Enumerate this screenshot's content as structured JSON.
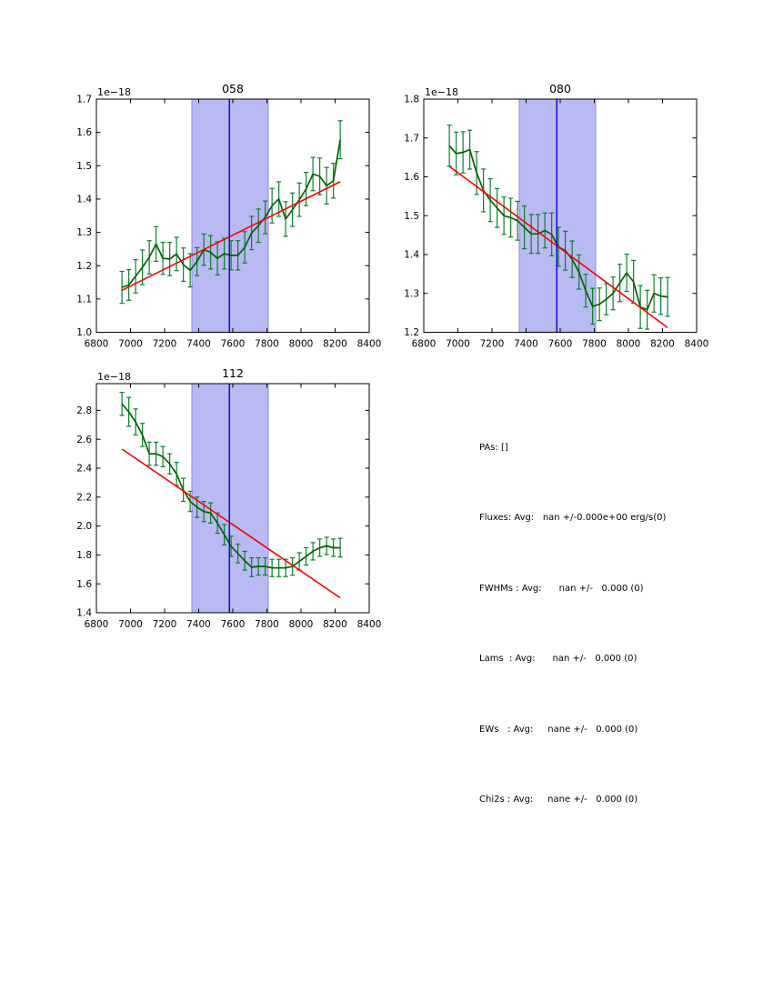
{
  "colors": {
    "background": "#ffffff",
    "axis": "#000000",
    "data_line": "#006400",
    "error_bar": "#0e7d33",
    "fit_line": "#ff0000",
    "vline": "#0000cc",
    "band_fill": "#b9b9f3",
    "band_edge": "#8a8ae6"
  },
  "stats": {
    "lines": [
      "PAs: []",
      "Fluxes: Avg:   nan +/-0.000e+00 erg/s(0)",
      "FWHMs : Avg:      nan +/-   0.000 (0)",
      "Lams  : Avg:      nan +/-   0.000 (0)",
      "EWs   : Avg:     nane +/-   0.000 (0)",
      "Chi2s : Avg:     nane +/-   0.000 (0)"
    ]
  },
  "chart_data": [
    {
      "type": "line",
      "title": "058",
      "offset_text": "1e−18",
      "xlim": [
        6800,
        8400
      ],
      "ylim": [
        1.0,
        1.7
      ],
      "xtick_values": [
        6800,
        7000,
        7200,
        7400,
        7600,
        7800,
        8000,
        8200,
        8400
      ],
      "xtick_labels": [
        "6800",
        "7000",
        "7200",
        "7400",
        "7600",
        "7800",
        "8000",
        "8200",
        "8400"
      ],
      "ytick_values": [
        1.0,
        1.1,
        1.2,
        1.3,
        1.4,
        1.5,
        1.6,
        1.7
      ],
      "ytick_labels": [
        "1.0",
        "1.1",
        "1.2",
        "1.3",
        "1.4",
        "1.5",
        "1.6",
        "1.7"
      ],
      "band": [
        7360,
        7808
      ],
      "vline": 7580,
      "x": [
        6950,
        6990,
        7030,
        7070,
        7110,
        7150,
        7190,
        7230,
        7270,
        7310,
        7350,
        7390,
        7430,
        7470,
        7510,
        7550,
        7590,
        7630,
        7670,
        7710,
        7750,
        7790,
        7830,
        7870,
        7910,
        7950,
        7990,
        8030,
        8070,
        8110,
        8150,
        8190,
        8230
      ],
      "y": [
        1.135,
        1.142,
        1.168,
        1.195,
        1.225,
        1.265,
        1.222,
        1.22,
        1.235,
        1.203,
        1.186,
        1.212,
        1.248,
        1.24,
        1.222,
        1.236,
        1.231,
        1.231,
        1.255,
        1.298,
        1.32,
        1.345,
        1.38,
        1.4,
        1.34,
        1.368,
        1.398,
        1.43,
        1.475,
        1.468,
        1.44,
        1.455,
        1.578
      ],
      "yerr": [
        0.048,
        0.046,
        0.05,
        0.052,
        0.05,
        0.052,
        0.048,
        0.05,
        0.05,
        0.05,
        0.05,
        0.042,
        0.047,
        0.05,
        0.05,
        0.046,
        0.044,
        0.044,
        0.047,
        0.05,
        0.05,
        0.049,
        0.052,
        0.052,
        0.052,
        0.05,
        0.05,
        0.05,
        0.05,
        0.055,
        0.055,
        0.052,
        0.057
      ],
      "fit_line": {
        "x": [
          6950,
          8230
        ],
        "y": [
          1.126,
          1.452
        ]
      }
    },
    {
      "type": "line",
      "title": "080",
      "offset_text": "1e−18",
      "xlim": [
        6800,
        8400
      ],
      "ylim": [
        1.2,
        1.8
      ],
      "xtick_values": [
        6800,
        7000,
        7200,
        7400,
        7600,
        7800,
        8000,
        8200,
        8400
      ],
      "xtick_labels": [
        "6800",
        "7000",
        "7200",
        "7400",
        "7600",
        "7800",
        "8000",
        "8200",
        "8400"
      ],
      "ytick_values": [
        1.2,
        1.3,
        1.4,
        1.5,
        1.6,
        1.7,
        1.8
      ],
      "ytick_labels": [
        "1.2",
        "1.3",
        "1.4",
        "1.5",
        "1.6",
        "1.7",
        "1.8"
      ],
      "band": [
        7360,
        7808
      ],
      "vline": 7580,
      "x": [
        6950,
        6990,
        7030,
        7070,
        7110,
        7150,
        7190,
        7230,
        7270,
        7310,
        7350,
        7390,
        7430,
        7470,
        7510,
        7550,
        7590,
        7630,
        7670,
        7710,
        7750,
        7790,
        7830,
        7870,
        7910,
        7950,
        7990,
        8030,
        8070,
        8110,
        8150,
        8190,
        8230
      ],
      "y": [
        1.68,
        1.66,
        1.663,
        1.67,
        1.61,
        1.565,
        1.54,
        1.52,
        1.5,
        1.495,
        1.487,
        1.47,
        1.453,
        1.453,
        1.462,
        1.452,
        1.42,
        1.41,
        1.388,
        1.355,
        1.307,
        1.267,
        1.272,
        1.285,
        1.3,
        1.327,
        1.353,
        1.33,
        1.265,
        1.258,
        1.3,
        1.293,
        1.291
      ],
      "yerr": [
        0.053,
        0.055,
        0.053,
        0.05,
        0.055,
        0.055,
        0.055,
        0.05,
        0.048,
        0.05,
        0.05,
        0.055,
        0.05,
        0.05,
        0.045,
        0.055,
        0.05,
        0.05,
        0.047,
        0.044,
        0.042,
        0.046,
        0.042,
        0.04,
        0.042,
        0.048,
        0.048,
        0.055,
        0.055,
        0.05,
        0.048,
        0.047,
        0.05
      ],
      "fit_line": {
        "x": [
          6950,
          8230
        ],
        "y": [
          1.627,
          1.212
        ]
      }
    },
    {
      "type": "line",
      "title": "112",
      "offset_text": "1e−18",
      "xlim": [
        6800,
        8400
      ],
      "ylim": [
        1.4,
        2.985
      ],
      "xtick_values": [
        6800,
        7000,
        7200,
        7400,
        7600,
        7800,
        8000,
        8200,
        8400
      ],
      "xtick_labels": [
        "6800",
        "7000",
        "7200",
        "7400",
        "7600",
        "7800",
        "8000",
        "8200",
        "8400"
      ],
      "ytick_values": [
        1.4,
        1.6,
        1.8,
        2.0,
        2.2,
        2.4,
        2.6,
        2.8
      ],
      "ytick_labels": [
        "1.4",
        "1.6",
        "1.8",
        "2.0",
        "2.2",
        "2.4",
        "2.6",
        "2.8"
      ],
      "band": [
        7360,
        7808
      ],
      "vline": 7580,
      "x": [
        6950,
        6990,
        7030,
        7070,
        7110,
        7150,
        7190,
        7230,
        7270,
        7310,
        7350,
        7390,
        7430,
        7470,
        7510,
        7550,
        7590,
        7630,
        7670,
        7710,
        7750,
        7790,
        7830,
        7870,
        7910,
        7950,
        7990,
        8030,
        8070,
        8110,
        8150,
        8190,
        8230
      ],
      "y": [
        2.845,
        2.79,
        2.72,
        2.63,
        2.5,
        2.5,
        2.48,
        2.43,
        2.36,
        2.25,
        2.17,
        2.13,
        2.1,
        2.09,
        2.02,
        1.94,
        1.86,
        1.81,
        1.76,
        1.715,
        1.72,
        1.72,
        1.71,
        1.71,
        1.71,
        1.72,
        1.755,
        1.79,
        1.825,
        1.85,
        1.862,
        1.85,
        1.85
      ],
      "yerr": [
        0.08,
        0.1,
        0.09,
        0.08,
        0.08,
        0.08,
        0.07,
        0.07,
        0.08,
        0.08,
        0.07,
        0.07,
        0.07,
        0.07,
        0.07,
        0.07,
        0.07,
        0.065,
        0.065,
        0.065,
        0.06,
        0.06,
        0.06,
        0.06,
        0.06,
        0.06,
        0.06,
        0.06,
        0.06,
        0.06,
        0.06,
        0.06,
        0.065
      ],
      "fit_line": {
        "x": [
          6950,
          8230
        ],
        "y": [
          2.532,
          1.503
        ]
      }
    }
  ]
}
